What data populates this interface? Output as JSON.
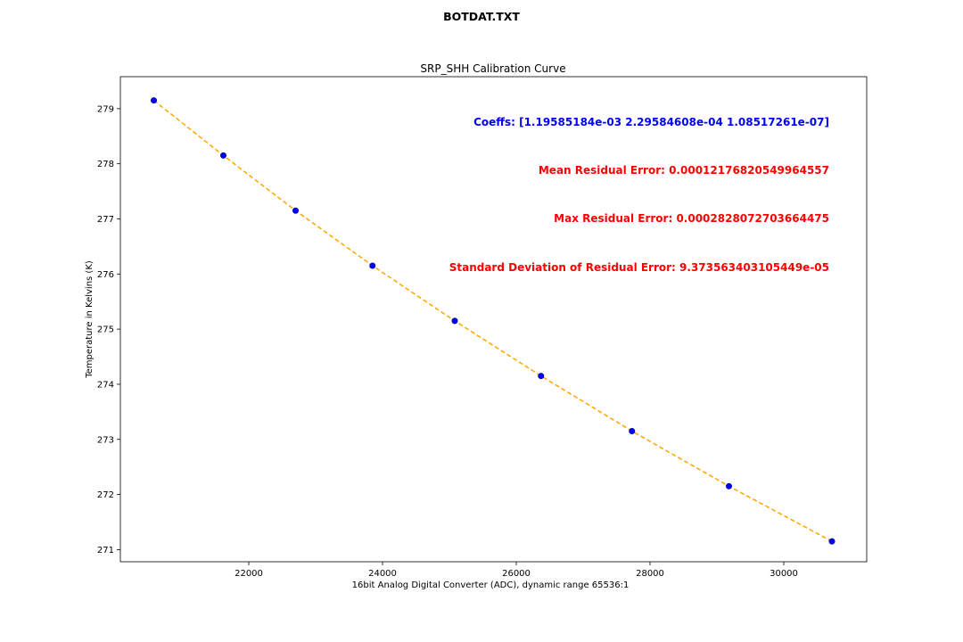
{
  "figure": {
    "suptitle": "BOTDAT.TXT"
  },
  "chart_data": {
    "type": "scatter",
    "title": "SRP_SHH Calibration Curve",
    "xlabel": "16bit Analog Digital Converter (ADC), dynamic range 65536:1",
    "ylabel": "Temperature in Kelvins (K)",
    "xlim": [
      20080,
      31240
    ],
    "ylim": [
      270.78,
      279.58
    ],
    "xticks": [
      22000,
      24000,
      26000,
      28000,
      30000
    ],
    "yticks": [
      271,
      272,
      273,
      274,
      275,
      276,
      277,
      278,
      279
    ],
    "grid": false,
    "series": [
      {
        "style": "points",
        "color": "#0000ff",
        "x": [
          20580,
          21620,
          22700,
          23850,
          25080,
          26370,
          27730,
          29180,
          30720
        ],
        "y": [
          279.15,
          278.15,
          277.15,
          276.15,
          275.15,
          274.15,
          273.15,
          272.15,
          271.15
        ]
      },
      {
        "style": "dashed-line",
        "color": "#ffa500",
        "x": [
          20580,
          21620,
          22700,
          23850,
          25080,
          26370,
          27730,
          29180,
          30720
        ],
        "y": [
          279.15,
          278.15,
          277.15,
          276.15,
          275.15,
          274.15,
          273.15,
          272.15,
          271.15
        ]
      }
    ],
    "annotations": [
      {
        "text": "Coeffs: [1.19585184e-03 2.29584608e-04 1.08517261e-07]",
        "color": "#0000ff"
      },
      {
        "text": "Mean Residual Error: 0.00012176820549964557",
        "color": "#ff0000"
      },
      {
        "text": "Max Residual Error: 0.0002828072703664475",
        "color": "#ff0000"
      },
      {
        "text": "Standard Deviation of Residual Error: 9.373563403105449e-05",
        "color": "#ff0000"
      }
    ]
  }
}
